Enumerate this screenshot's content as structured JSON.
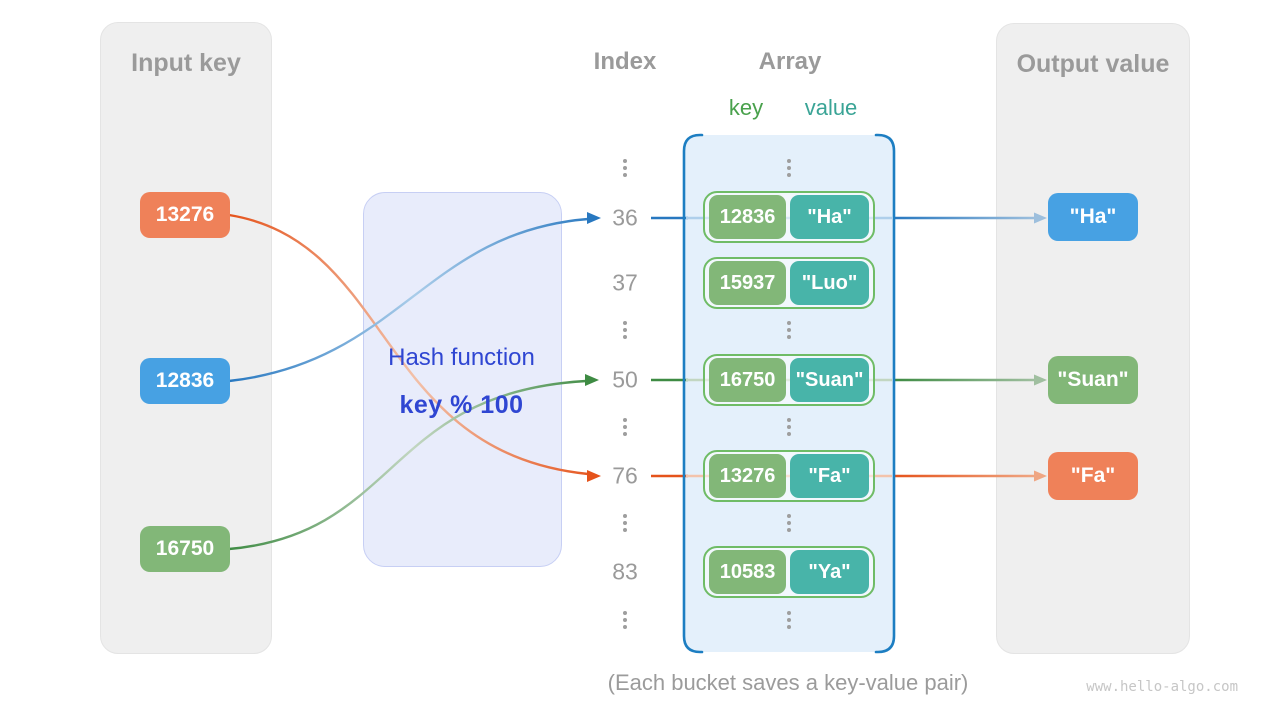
{
  "diagram": {
    "caption": "(Each bucket saves a key-value pair)",
    "watermark": "www.hello-algo.com"
  },
  "input_panel": {
    "title": "Input key",
    "keys": [
      {
        "label": "13276",
        "color": "#ef8159"
      },
      {
        "label": "12836",
        "color": "#47a1e3"
      },
      {
        "label": "16750",
        "color": "#82b778"
      }
    ]
  },
  "hash_box": {
    "line1": "Hash function",
    "line2": "key % 100"
  },
  "index_column": {
    "title": "Index",
    "items": [
      {
        "type": "dots"
      },
      {
        "type": "num",
        "label": "36"
      },
      {
        "type": "num",
        "label": "37"
      },
      {
        "type": "dots"
      },
      {
        "type": "num",
        "label": "50"
      },
      {
        "type": "dots"
      },
      {
        "type": "num",
        "label": "76"
      },
      {
        "type": "dots"
      },
      {
        "type": "num",
        "label": "83"
      },
      {
        "type": "dots"
      }
    ]
  },
  "array": {
    "title": "Array",
    "key_header": "key",
    "value_header": "value",
    "rows": [
      {
        "type": "dots"
      },
      {
        "type": "pair",
        "key": "12836",
        "value": "\"Ha\""
      },
      {
        "type": "pair",
        "key": "15937",
        "value": "\"Luo\""
      },
      {
        "type": "dots"
      },
      {
        "type": "pair",
        "key": "16750",
        "value": "\"Suan\""
      },
      {
        "type": "dots"
      },
      {
        "type": "pair",
        "key": "13276",
        "value": "\"Fa\""
      },
      {
        "type": "dots"
      },
      {
        "type": "pair",
        "key": "10583",
        "value": "\"Ya\""
      },
      {
        "type": "dots"
      }
    ]
  },
  "output_panel": {
    "title": "Output value",
    "values": [
      {
        "label": "\"Ha\"",
        "color": "#47a1e3"
      },
      {
        "label": "\"Suan\"",
        "color": "#82b778"
      },
      {
        "label": "\"Fa\"",
        "color": "#ef8159"
      }
    ]
  },
  "colors": {
    "orange_box": "#ef8159",
    "blue_box": "#47a1e3",
    "green_box": "#82b778",
    "teal_box": "#48b4a9",
    "pill_border": "#6fbc66",
    "panel_bg": "#efefef",
    "array_bg": "#e4f0fb",
    "array_border": "#1d7ec2",
    "hash_bg": "#e8ecfb",
    "hash_border": "#c7cff4",
    "hash_text": "#2f46d2",
    "line_blue": "#2878c0",
    "line_green": "#3e8b43",
    "line_orange": "#e5531b",
    "gray_text": "#9a9a9a"
  }
}
